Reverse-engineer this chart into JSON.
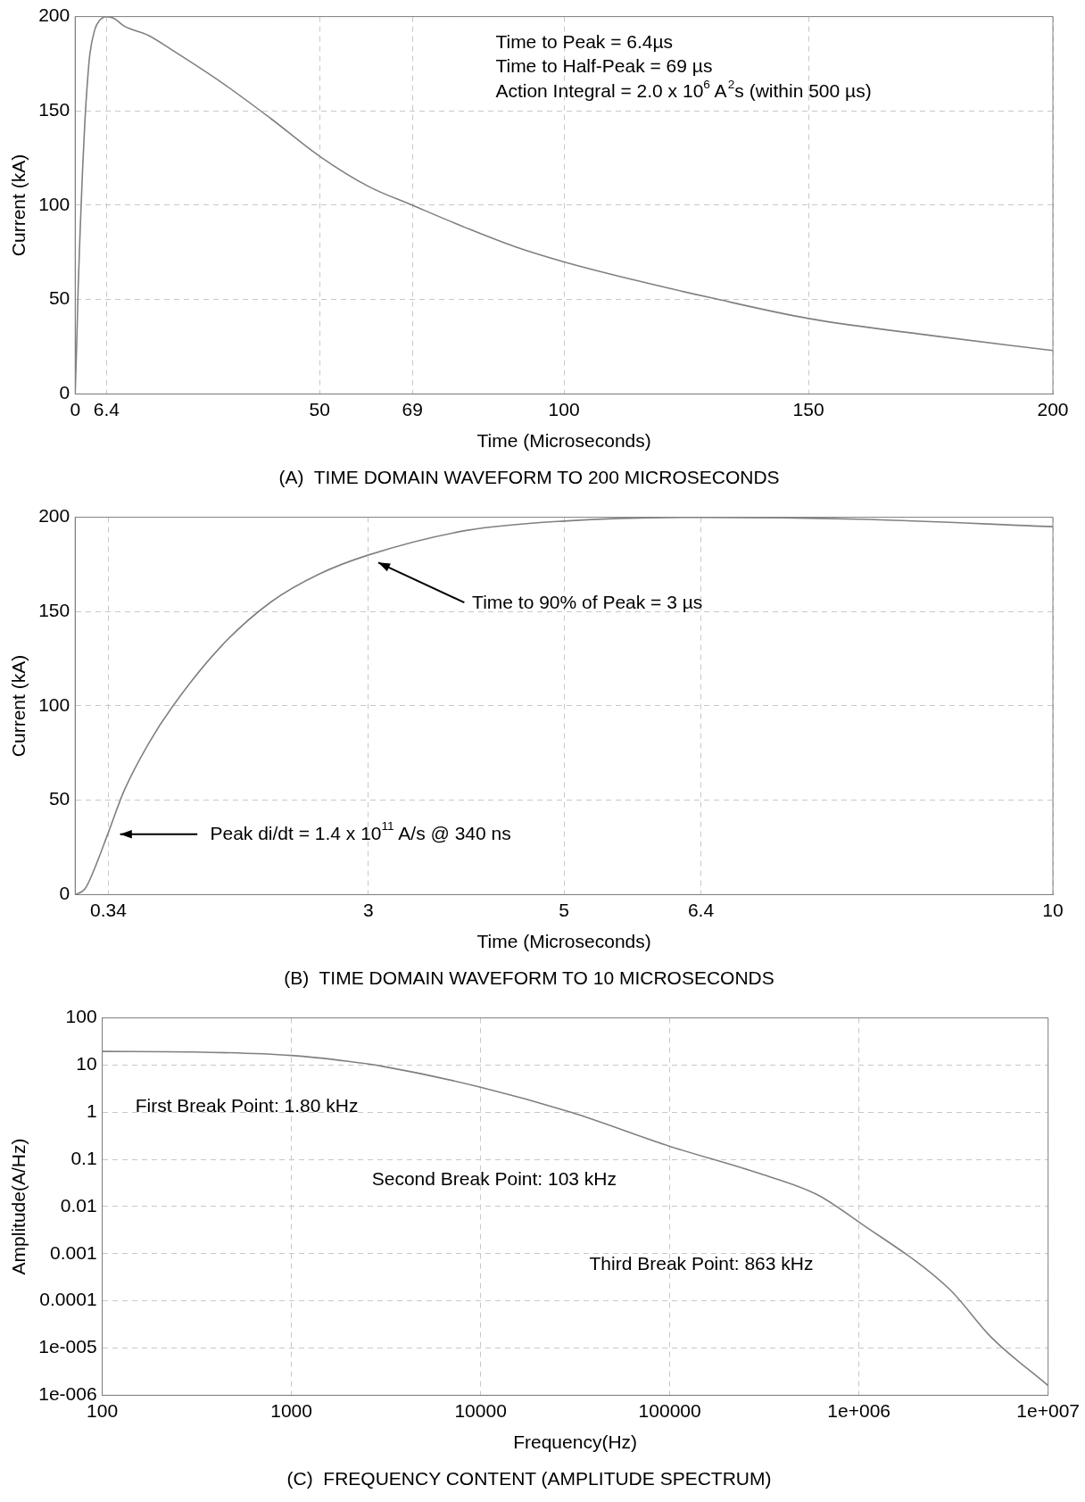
{
  "chart_data": [
    {
      "type": "line",
      "title": "(A)  TIME DOMAIN WAVEFORM TO 200 MICROSECONDS",
      "xlabel": "Time (Microseconds)",
      "ylabel": "Current (kA)",
      "x": [
        0,
        0.3,
        0.6,
        1,
        1.5,
        2,
        2.5,
        3,
        4,
        5,
        6.4,
        8,
        10,
        15,
        20,
        30,
        40,
        50,
        60,
        69,
        80,
        90,
        100,
        115,
        130,
        150,
        175,
        200
      ],
      "series": [
        {
          "color": "#808080",
          "values": [
            0,
            25,
            55,
            85,
            118,
            145,
            165,
            180,
            193,
            198,
            200,
            199,
            195,
            190,
            182,
            165,
            146,
            126,
            110,
            100,
            88,
            78,
            70,
            60,
            51,
            40,
            31,
            23
          ]
        }
      ],
      "xlim": [
        0,
        200
      ],
      "xticks": [
        0,
        6.4,
        50,
        69,
        100,
        150,
        200
      ],
      "ylim": [
        0,
        200
      ],
      "yticks": [
        0,
        50,
        100,
        150,
        200
      ],
      "annotations": [
        "Time to Peak = 6.4µs",
        "Time to Half-Peak = 69 µs",
        "Action Integral = 2.0 x 10$^{6}$ A$^{2}$s (within 500 µs)"
      ],
      "grid": true,
      "legend": false,
      "marker": "none",
      "line_style": "solid"
    },
    {
      "type": "line",
      "title": "(B)  TIME DOMAIN WAVEFORM TO 10 MICROSECONDS",
      "xlabel": "Time (Microseconds)",
      "ylabel": "Current (kA)",
      "x": [
        0,
        0.1,
        0.2,
        0.34,
        0.5,
        0.75,
        1,
        1.5,
        2,
        2.5,
        3,
        4,
        5,
        6.4,
        8,
        10
      ],
      "series": [
        {
          "color": "#808080",
          "values": [
            0,
            3,
            14,
            33,
            55,
            80,
            100,
            132,
            155,
            170,
            180,
            193,
            198,
            200,
            199,
            195
          ]
        }
      ],
      "xlim": [
        0,
        10
      ],
      "xticks": [
        0.34,
        3,
        5,
        6.4,
        10
      ],
      "ylim": [
        0,
        200
      ],
      "yticks": [
        0,
        50,
        100,
        150,
        200
      ],
      "annotations": [
        "Time to 90% of Peak = 3 µs",
        "Peak di/dt = 1.4 x 10$^{11}$ A/s @ 340 ns"
      ],
      "grid": true,
      "legend": false,
      "marker": "none",
      "line_style": "solid"
    },
    {
      "type": "line",
      "title": "(C)  FREQUENCY CONTENT (AMPLITUDE SPECTRUM)",
      "xlabel": "Frequency(Hz)",
      "ylabel": "Amplitude(A/Hz)",
      "x": [
        100,
        300,
        1000,
        2000,
        3000,
        10000,
        30000,
        100000,
        300000,
        600000,
        1000000,
        3000000,
        5000000,
        10000000
      ],
      "series": [
        {
          "color": "#808080",
          "values": [
            19.5,
            19,
            16,
            12,
            9.5,
            3.4,
            1.0,
            0.19,
            0.05,
            0.018,
            0.0047,
            0.00018,
            1.7e-05,
            1.6e-06
          ]
        }
      ],
      "xlim": [
        100,
        10000000
      ],
      "xticks": [
        100,
        1000,
        10000,
        100000,
        {
          "value": 1000000,
          "label": "1e+006"
        },
        {
          "value": 10000000,
          "label": "1e+007"
        }
      ],
      "ylim": [
        1e-06,
        100
      ],
      "yticks": [
        {
          "value": 1e-06,
          "label": "1e-006"
        },
        {
          "value": 1e-05,
          "label": "1e-005"
        },
        0.0001,
        0.001,
        0.01,
        0.1,
        1,
        10,
        100
      ],
      "annotations": [
        "First Break Point: 1.80 kHz",
        "Second Break Point: 103 kHz",
        "Third Break Point: 863 kHz"
      ],
      "log": "xy",
      "grid": true,
      "legend": false,
      "marker": "none",
      "line_style": "solid"
    }
  ]
}
